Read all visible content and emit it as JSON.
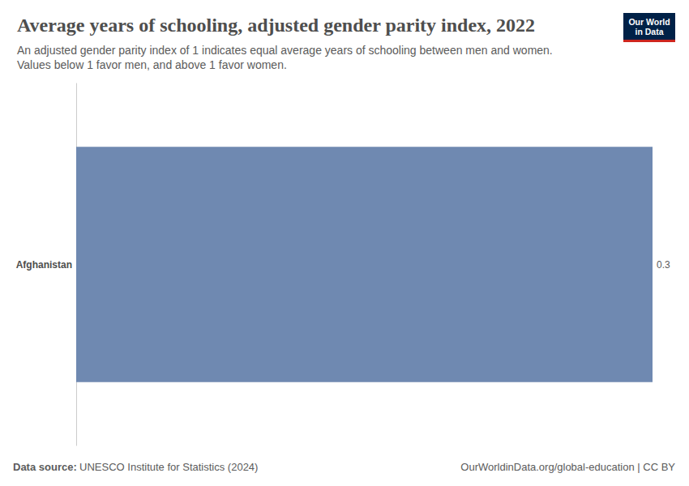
{
  "chart_data": {
    "type": "bar",
    "title": "Average years of schooling, adjusted gender parity index, 2022",
    "subtitle": [
      "An adjusted gender parity index of 1 indicates equal average years of schooling between men and women.",
      "Values below 1 favor men, and above 1 favor women."
    ],
    "categories": [
      "Afghanistan"
    ],
    "values": [
      0.3
    ],
    "color": "#6f89b1",
    "orientation": "horizontal",
    "data_labels": true,
    "tick_labels": "y",
    "grid": false,
    "xlim": [
      0,
      0.3
    ],
    "source_label": "Data source:",
    "source": "UNESCO Institute for Statistics (2024)",
    "footer_right": "OurWorldinData.org/global-education | CC BY",
    "logo": [
      "Our World",
      "in Data"
    ]
  }
}
